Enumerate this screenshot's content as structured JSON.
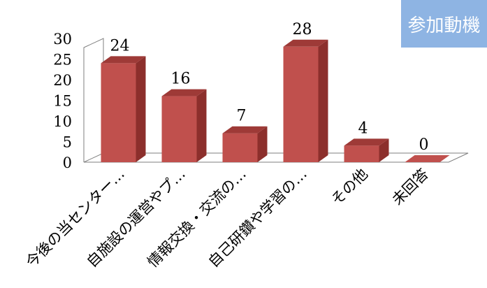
{
  "tag_label": "参加動機",
  "chart_data": {
    "type": "bar",
    "categories": [
      "今後の当センター…",
      "自施設の運営やプ…",
      "情報交換・交流の…",
      "自己研鑽や学習の…",
      "その他",
      "未回答"
    ],
    "values": [
      24,
      16,
      7,
      28,
      4,
      0
    ],
    "ylim": [
      0,
      30
    ],
    "yticks": [
      0,
      5,
      10,
      15,
      20,
      25,
      30
    ],
    "colors": {
      "front": "#c0504d",
      "side": "#8c2f2c",
      "top": "#9e3a37",
      "floor": "#ffffff",
      "wall": "#ffffff",
      "tag": "#8eb4e3"
    }
  }
}
